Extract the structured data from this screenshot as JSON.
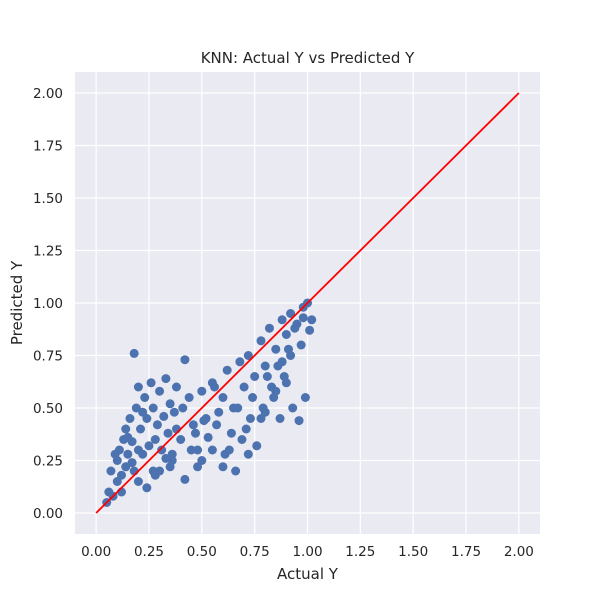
{
  "chart_data": {
    "type": "scatter",
    "title": "KNN: Actual Y vs Predicted Y",
    "xlabel": "Actual Y",
    "ylabel": "Predicted Y",
    "xlim": [
      -0.1,
      2.1
    ],
    "ylim": [
      -0.1,
      2.1
    ],
    "xticks": [
      0.0,
      0.25,
      0.5,
      0.75,
      1.0,
      1.25,
      1.5,
      1.75,
      2.0
    ],
    "yticks": [
      0.0,
      0.25,
      0.5,
      0.75,
      1.0,
      1.25,
      1.5,
      1.75,
      2.0
    ],
    "xtick_labels": [
      "0.00",
      "0.25",
      "0.50",
      "0.75",
      "1.00",
      "1.25",
      "1.50",
      "1.75",
      "2.00"
    ],
    "ytick_labels": [
      "0.00",
      "0.25",
      "0.50",
      "0.75",
      "1.00",
      "1.25",
      "1.50",
      "1.75",
      "2.00"
    ],
    "grid": true,
    "background_color": "#EAEAF2",
    "grid_color": "#FFFFFF",
    "point_color": "#4C72B0",
    "series": [
      {
        "kind": "points",
        "x": [
          0.05,
          0.06,
          0.07,
          0.08,
          0.1,
          0.1,
          0.11,
          0.12,
          0.13,
          0.14,
          0.14,
          0.15,
          0.16,
          0.17,
          0.18,
          0.18,
          0.19,
          0.2,
          0.2,
          0.21,
          0.22,
          0.23,
          0.24,
          0.25,
          0.26,
          0.27,
          0.28,
          0.29,
          0.3,
          0.31,
          0.32,
          0.33,
          0.34,
          0.35,
          0.36,
          0.37,
          0.38,
          0.4,
          0.42,
          0.44,
          0.46,
          0.48,
          0.5,
          0.52,
          0.55,
          0.58,
          0.6,
          0.62,
          0.65,
          0.68,
          0.7,
          0.72,
          0.75,
          0.78,
          0.8,
          0.82,
          0.85,
          0.88,
          0.9,
          0.92,
          0.95,
          0.98,
          1.0,
          1.02,
          0.17,
          0.28,
          0.35,
          0.42,
          0.5,
          0.55,
          0.6,
          0.66,
          0.69,
          0.72,
          0.76,
          0.8,
          0.84,
          0.87,
          0.9,
          0.93,
          0.96,
          0.99,
          0.12,
          0.2,
          0.24,
          0.3,
          0.36,
          0.38,
          0.45,
          0.48,
          0.53,
          0.57,
          0.63,
          0.67,
          0.71,
          0.74,
          0.78,
          0.83,
          0.86,
          0.89,
          0.92,
          0.97,
          1.01,
          0.09,
          0.15,
          0.22,
          0.27,
          0.33,
          0.41,
          0.47,
          0.51,
          0.56,
          0.61,
          0.64,
          0.73,
          0.79,
          0.81,
          0.85,
          0.88,
          0.91,
          0.94,
          0.98
        ],
        "y": [
          0.05,
          0.1,
          0.2,
          0.08,
          0.15,
          0.25,
          0.3,
          0.18,
          0.35,
          0.22,
          0.4,
          0.28,
          0.45,
          0.34,
          0.76,
          0.2,
          0.5,
          0.3,
          0.6,
          0.4,
          0.28,
          0.55,
          0.45,
          0.32,
          0.62,
          0.5,
          0.35,
          0.42,
          0.58,
          0.3,
          0.46,
          0.64,
          0.38,
          0.52,
          0.25,
          0.48,
          0.6,
          0.35,
          0.73,
          0.55,
          0.42,
          0.3,
          0.58,
          0.45,
          0.62,
          0.48,
          0.55,
          0.68,
          0.5,
          0.72,
          0.6,
          0.75,
          0.65,
          0.82,
          0.7,
          0.88,
          0.78,
          0.92,
          0.85,
          0.95,
          0.9,
          0.98,
          1.0,
          0.92,
          0.24,
          0.18,
          0.22,
          0.16,
          0.25,
          0.3,
          0.22,
          0.2,
          0.35,
          0.28,
          0.32,
          0.48,
          0.55,
          0.45,
          0.62,
          0.5,
          0.44,
          0.55,
          0.1,
          0.15,
          0.12,
          0.2,
          0.28,
          0.4,
          0.3,
          0.22,
          0.36,
          0.42,
          0.3,
          0.5,
          0.4,
          0.55,
          0.45,
          0.6,
          0.7,
          0.65,
          0.75,
          0.8,
          0.87,
          0.28,
          0.36,
          0.48,
          0.2,
          0.26,
          0.5,
          0.38,
          0.44,
          0.6,
          0.28,
          0.38,
          0.45,
          0.5,
          0.65,
          0.58,
          0.72,
          0.78,
          0.88,
          0.93
        ]
      },
      {
        "kind": "reference-line",
        "color": "#FF0000",
        "x": [
          0,
          2
        ],
        "y": [
          0,
          2
        ]
      }
    ]
  }
}
